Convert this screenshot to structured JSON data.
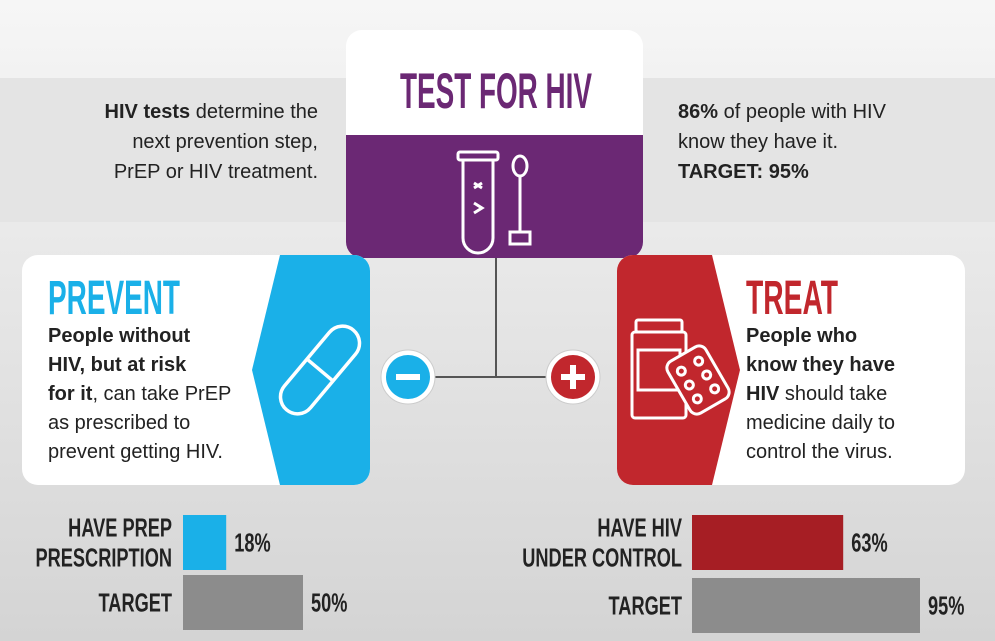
{
  "header": {
    "title": "TEST FOR HIV",
    "left_text": [
      [
        {
          "text": "HIV tests",
          "bold": true
        },
        {
          "text": " determine the"
        }
      ],
      [
        {
          "text": "next prevention step,"
        }
      ],
      [
        {
          "text": "PrEP or HIV treatment."
        }
      ]
    ],
    "right_text": [
      [
        {
          "text": "86%",
          "bold": true
        },
        {
          "text": " of people with HIV"
        }
      ],
      [
        {
          "text": "know they have it."
        }
      ],
      [
        {
          "text": "TARGET: 95%",
          "bold": true
        }
      ]
    ]
  },
  "prevent": {
    "title": "PREVENT",
    "body": [
      [
        {
          "text": "People without",
          "bold": true
        }
      ],
      [
        {
          "text": "HIV, but at risk",
          "bold": true
        }
      ],
      [
        {
          "text": "for it",
          "bold": true
        },
        {
          "text": ", can take PrEP"
        }
      ],
      [
        {
          "text": "as prescribed to"
        }
      ],
      [
        {
          "text": "prevent getting HIV."
        }
      ]
    ],
    "color": "#1ab0e8",
    "bars": [
      {
        "label": [
          "HAVE PREP",
          "PRESCRIPTION"
        ],
        "value": 18,
        "value_label": "18%",
        "color": "#1ab0e8"
      },
      {
        "label": [
          "TARGET"
        ],
        "value": 50,
        "value_label": "50%",
        "color": "#8c8c8c"
      }
    ]
  },
  "treat": {
    "title": "TREAT",
    "body": [
      [
        {
          "text": "People who",
          "bold": true
        }
      ],
      [
        {
          "text": "know they have",
          "bold": true
        }
      ],
      [
        {
          "text": "HIV",
          "bold": true
        },
        {
          "text": " should take"
        }
      ],
      [
        {
          "text": "medicine daily to"
        }
      ],
      [
        {
          "text": "control the virus."
        }
      ]
    ],
    "color": "#c1272d",
    "bars": [
      {
        "label": [
          "HAVE HIV",
          "UNDER CONTROL"
        ],
        "value": 63,
        "value_label": "63%",
        "color": "#a61e24"
      },
      {
        "label": [
          "TARGET"
        ],
        "value": 95,
        "value_label": "95%",
        "color": "#8c8c8c"
      }
    ]
  }
}
